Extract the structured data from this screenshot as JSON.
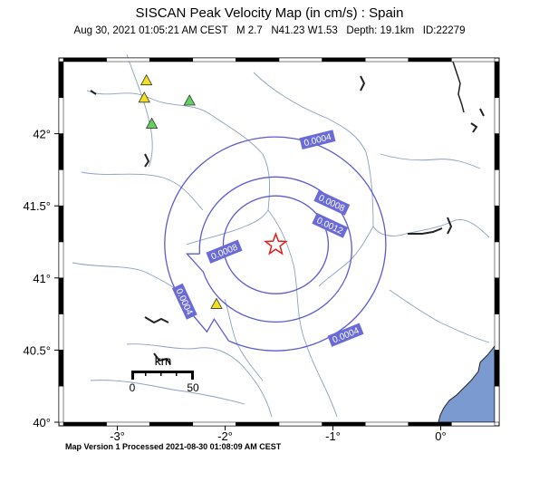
{
  "title": "SISCAN Peak Velocity Map (in cm/s) : Spain",
  "subtitle": "Aug 30, 2021 01:05:21 AM CEST   M 2.7   N41.23 W1.53   Depth: 19.1km   ID:22279",
  "footer": "Map Version 1 Processed 2021-08-30 01:08:09 AM CEST",
  "axes": {
    "lat_ticks": [
      "42°",
      "41.5°",
      "41°",
      "40.5°",
      "40°"
    ],
    "lon_ticks": [
      "-3°",
      "-2°",
      "-1°",
      "0°"
    ]
  },
  "map_bounds": {
    "lon_min": -3.5,
    "lon_max": 0.5,
    "lat_min": 40.0,
    "lat_max": 42.5
  },
  "epicenter": {
    "lon": -1.53,
    "lat": 41.23,
    "marker": "red-star-icon"
  },
  "scale_bar": {
    "unit": "km",
    "labels": [
      "0",
      "50"
    ]
  },
  "contour_labels": [
    "0.0004",
    "0.0008",
    "0.0012",
    "0.0008",
    "0.0004",
    "0.0004"
  ],
  "colors": {
    "contour": "#5b5bd6",
    "contour_label_bg": "#6b6bd8",
    "river": "#8aa0c0",
    "sea": "#7a9ad0",
    "station_yellow": "#f0e020",
    "station_green": "#60d060",
    "epicenter": "#e02020"
  },
  "stations": [
    {
      "lon": -2.73,
      "lat": 42.37,
      "color": "yellow"
    },
    {
      "lon": -2.75,
      "lat": 42.25,
      "color": "yellow"
    },
    {
      "lon": -2.33,
      "lat": 42.23,
      "color": "green"
    },
    {
      "lon": -2.68,
      "lat": 42.07,
      "color": "green"
    },
    {
      "lon": -2.08,
      "lat": 40.82,
      "color": "yellow"
    }
  ]
}
